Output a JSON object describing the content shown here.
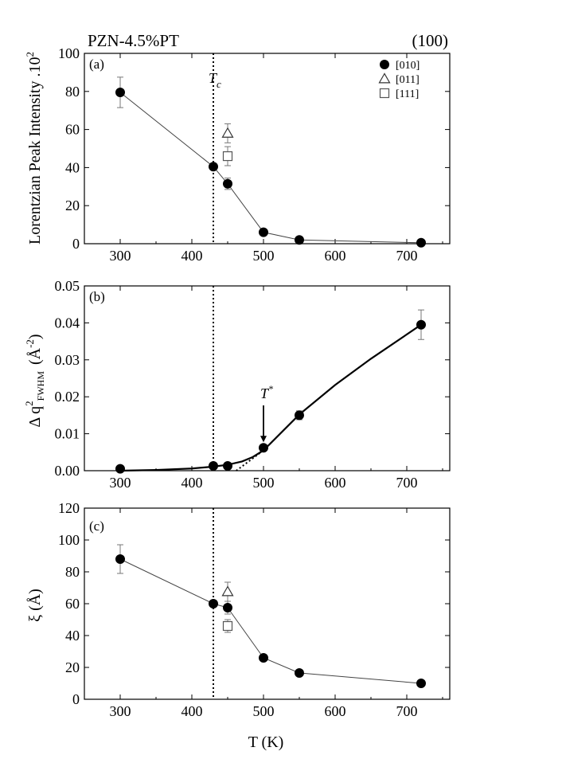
{
  "header": {
    "sample": "PZN-4.5%PT",
    "reflection": "(100)"
  },
  "shared": {
    "xlabel": "T (K)",
    "xlim": [
      250,
      760
    ],
    "xticks": [
      300,
      400,
      500,
      600,
      700
    ],
    "tc_temperature": 430
  },
  "legend": [
    {
      "label": "[010]",
      "marker": "filled-circle"
    },
    {
      "label": "[011]",
      "marker": "open-triangle"
    },
    {
      "label": "[111]",
      "marker": "open-square"
    }
  ],
  "chart_data": [
    {
      "id": "a",
      "type": "scatter",
      "panel_label": "(a)",
      "ylabel": "Lorentzian Peak Intensity .10",
      "ylabel_sup": "2",
      "ylim": [
        0,
        100
      ],
      "yticks": [
        0,
        20,
        40,
        60,
        80,
        100
      ],
      "annotation": {
        "text": "T",
        "sub": "c"
      },
      "series": [
        {
          "name": "[010]",
          "marker": "filled-circle",
          "connected": true,
          "x": [
            300,
            430,
            450,
            500,
            550,
            720
          ],
          "y": [
            79.5,
            40.5,
            31.5,
            6,
            2,
            0.5
          ],
          "err": [
            8,
            0,
            3,
            0,
            0,
            0
          ]
        },
        {
          "name": "[011]",
          "marker": "open-triangle",
          "connected": false,
          "x": [
            450
          ],
          "y": [
            58
          ],
          "err": [
            5
          ]
        },
        {
          "name": "[111]",
          "marker": "open-square",
          "connected": false,
          "x": [
            450
          ],
          "y": [
            46
          ],
          "err": [
            5
          ]
        }
      ]
    },
    {
      "id": "b",
      "type": "scatter",
      "panel_label": "(b)",
      "ylabel": "Δ q",
      "ylabel_sup": "2",
      "ylabel_sub": "FWHM",
      "ylabel_units": "(Å",
      "ylabel_units_sup": "-2",
      "ylabel_units_close": ")",
      "ylim": [
        0,
        0.05
      ],
      "yticks": [
        0,
        0.01,
        0.02,
        0.03,
        0.04,
        0.05
      ],
      "ytick_labels": [
        "0.00",
        "0.01",
        "0.02",
        "0.03",
        "0.04",
        "0.05"
      ],
      "annotation": {
        "text": "T",
        "sup": "*",
        "x": 500,
        "y": 0.0062
      },
      "series": [
        {
          "name": "[010]",
          "marker": "filled-circle",
          "connected": false,
          "x": [
            300,
            430,
            450,
            500,
            550,
            720
          ],
          "y": [
            0.0005,
            0.0013,
            0.0013,
            0.0062,
            0.015,
            0.0395
          ],
          "err": [
            0,
            0,
            0,
            0,
            0.0012,
            0.004
          ]
        },
        {
          "name": "fit-curve",
          "style": "solid-thick",
          "x": [
            300,
            350,
            400,
            430,
            450,
            470,
            485,
            500,
            550,
            600,
            650,
            720
          ],
          "y": [
            0,
            0.0002,
            0.0006,
            0.0011,
            0.0016,
            0.0025,
            0.0037,
            0.0055,
            0.0152,
            0.0232,
            0.0303,
            0.0395
          ]
        },
        {
          "name": "linear-extrapolation",
          "style": "dotted",
          "x": [
            462,
            500
          ],
          "y": [
            0,
            0.0055
          ]
        }
      ]
    },
    {
      "id": "c",
      "type": "scatter",
      "panel_label": "(c)",
      "ylabel": "ξ (Å)",
      "ylim": [
        0,
        120
      ],
      "yticks": [
        0,
        20,
        40,
        60,
        80,
        100,
        120
      ],
      "series": [
        {
          "name": "[010]",
          "marker": "filled-circle",
          "connected": true,
          "x": [
            300,
            430,
            450,
            500,
            550,
            720
          ],
          "y": [
            88,
            60,
            57.5,
            26,
            16.5,
            10
          ],
          "err": [
            9,
            0,
            4,
            0,
            0,
            0
          ]
        },
        {
          "name": "[011]",
          "marker": "open-triangle",
          "connected": false,
          "x": [
            450
          ],
          "y": [
            67.5
          ],
          "err": [
            6
          ]
        },
        {
          "name": "[111]",
          "marker": "open-square",
          "connected": false,
          "x": [
            450
          ],
          "y": [
            46
          ],
          "err": [
            4
          ]
        }
      ]
    }
  ]
}
